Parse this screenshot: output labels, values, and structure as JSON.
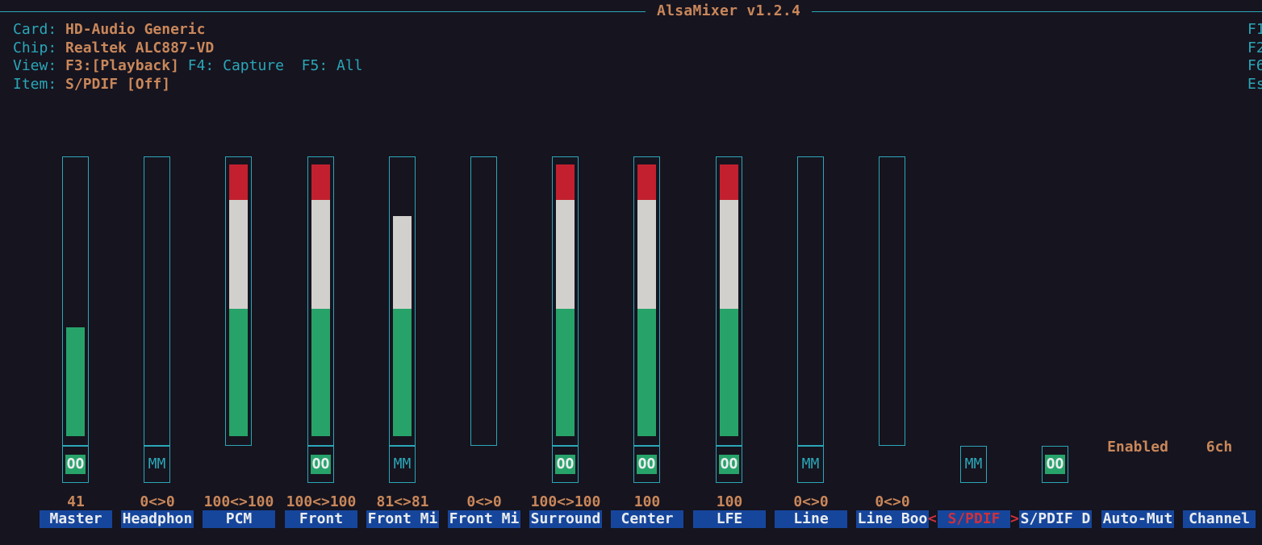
{
  "app": {
    "title": "AlsaMixer v1.2.4"
  },
  "info": {
    "card_label": "Card:",
    "card_value": "HD-Audio Generic",
    "chip_label": "Chip:",
    "chip_value": "Realtek ALC887-VD",
    "view_label": "View:",
    "view_f3": "F3:",
    "view_playback": "[Playback]",
    "view_f4": " F4: Capture",
    "view_f5": "  F5: All",
    "item_label": "Item:",
    "item_value": "S/PDIF [Off]"
  },
  "keys": [
    "F1",
    "F2",
    "F6",
    "Es"
  ],
  "controls": [
    {
      "name": "Master",
      "volume": "41",
      "level": 0.4,
      "switch": "OO"
    },
    {
      "name": "Headphon",
      "volume": "0<>0",
      "level": 0.0,
      "switch": "MM"
    },
    {
      "name": "PCM",
      "volume": "100<>100",
      "level": 1.0,
      "switch": ""
    },
    {
      "name": "Front",
      "volume": "100<>100",
      "level": 1.0,
      "switch": "OO"
    },
    {
      "name": "Front Mi",
      "volume": "81<>81",
      "level": 0.81,
      "switch": "MM"
    },
    {
      "name": "Front Mi",
      "volume": "0<>0",
      "level": 0.0,
      "switch": ""
    },
    {
      "name": "Surround",
      "volume": "100<>100",
      "level": 1.0,
      "switch": "OO"
    },
    {
      "name": "Center",
      "volume": "100",
      "level": 1.0,
      "switch": "OO"
    },
    {
      "name": "LFE",
      "volume": "100",
      "level": 1.0,
      "switch": "OO"
    },
    {
      "name": "Line",
      "volume": "0<>0",
      "level": 0.0,
      "switch": "MM"
    },
    {
      "name": "Line Boo",
      "volume": "0<>0",
      "level": 0.0,
      "switch": ""
    },
    {
      "name": "S/PDIF",
      "volume": "",
      "level": null,
      "switch": "MM",
      "selected": true
    },
    {
      "name": "S/PDIF D",
      "volume": "",
      "level": null,
      "switch": "OO"
    },
    {
      "name": "Auto-Mut",
      "volume": "",
      "level": null,
      "switch": "",
      "enum": "Enabled"
    },
    {
      "name": "Channel",
      "volume": "",
      "level": null,
      "switch": "",
      "enum": "6ch"
    }
  ],
  "selection_arrows": {
    "left": "<",
    "right": ">"
  },
  "colors": {
    "background": "#16141f",
    "border": "#2aa7b8",
    "label": "#2aa7b8",
    "value": "#c9875a",
    "level_low": "#27a36a",
    "level_mid": "#d2d0cd",
    "level_high": "#c2202e",
    "name_bg": "#16469c",
    "selected_name": "#d0303b"
  }
}
